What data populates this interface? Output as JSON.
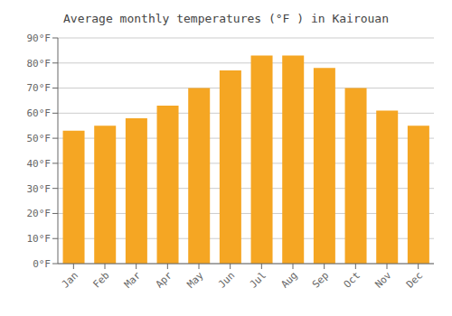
{
  "chart_data": {
    "type": "bar",
    "title": "Average monthly temperatures (°F ) in Kairouan",
    "categories": [
      "Jan",
      "Feb",
      "Mar",
      "Apr",
      "May",
      "Jun",
      "Jul",
      "Aug",
      "Sep",
      "Oct",
      "Nov",
      "Dec"
    ],
    "values": [
      53,
      55,
      58,
      63,
      70,
      77,
      83,
      83,
      78,
      70,
      61,
      55
    ],
    "color": "#F5A623",
    "ylim": [
      0,
      90
    ],
    "yticks": [
      {
        "value": 0,
        "label": "0°F"
      },
      {
        "value": 10,
        "label": "10°F"
      },
      {
        "value": 20,
        "label": "20°F"
      },
      {
        "value": 30,
        "label": "30°F"
      },
      {
        "value": 40,
        "label": "40°F"
      },
      {
        "value": 50,
        "label": "50°F"
      },
      {
        "value": 60,
        "label": "60°F"
      },
      {
        "value": 70,
        "label": "70°F"
      },
      {
        "value": 80,
        "label": "80°F"
      },
      {
        "value": 90,
        "label": "90°F"
      }
    ],
    "grid": true
  }
}
